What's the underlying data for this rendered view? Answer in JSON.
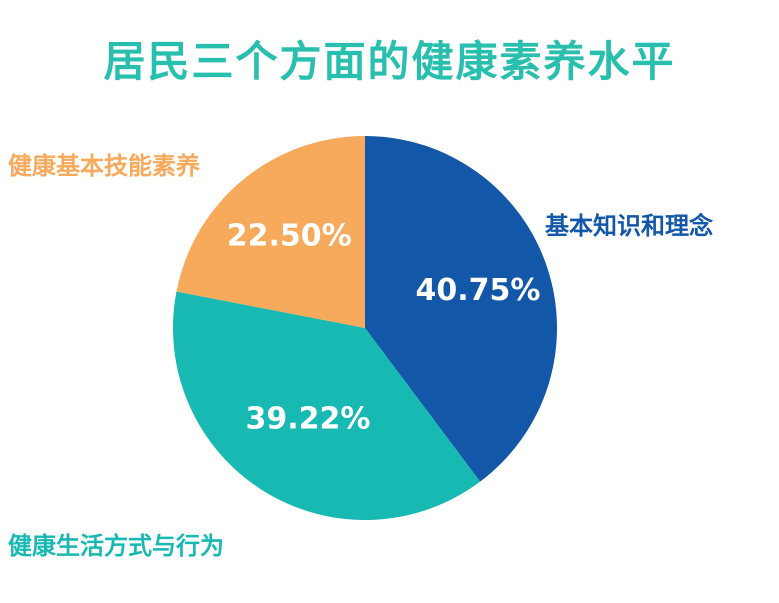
{
  "title": "居民三个方面的健康素养水平",
  "colors": {
    "title": "#29bfae",
    "knowledge": "#1257a8",
    "lifestyle": "#18b9b3",
    "skills": "#f7a95c",
    "value_text": "#ffffff"
  },
  "chart_data": {
    "type": "pie",
    "title": "居民三个方面的健康素养水平",
    "slices": [
      {
        "label": "基本知识和理念",
        "value": 40.75,
        "display": "40.75%",
        "color": "#1257a8"
      },
      {
        "label": "健康生活方式与行为",
        "value": 39.22,
        "display": "39.22%",
        "color": "#18b9b3"
      },
      {
        "label": "健康基本技能素养",
        "value": 22.5,
        "display": "22.50%",
        "color": "#f7a95c"
      }
    ],
    "start": "top",
    "direction": "clockwise"
  }
}
